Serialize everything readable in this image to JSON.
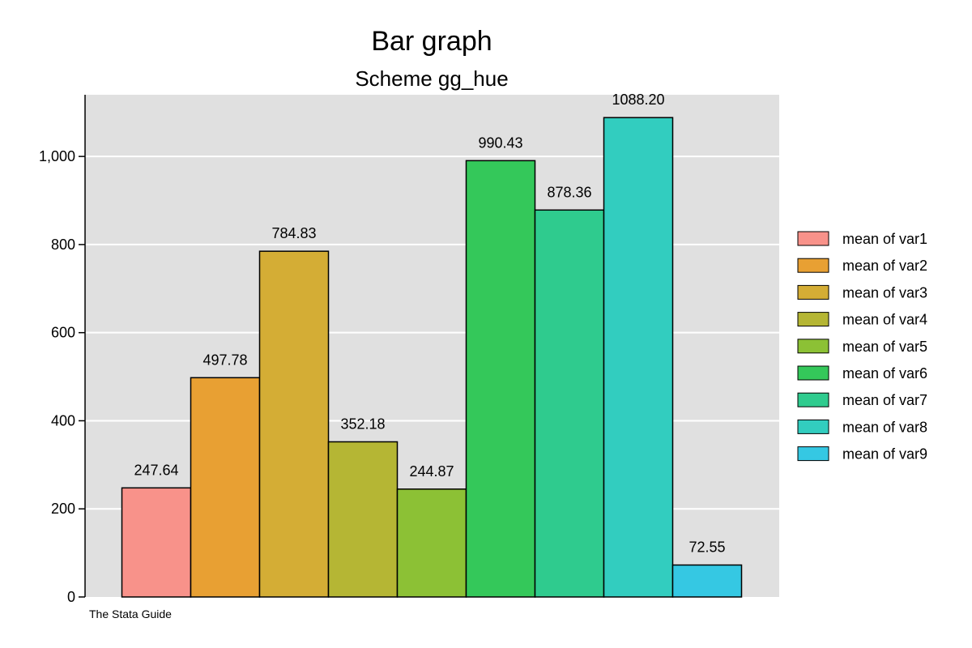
{
  "chart_data": {
    "type": "bar",
    "title": "Bar graph",
    "subtitle": "Scheme gg_hue",
    "note": "The Stata Guide",
    "xlabel": "",
    "ylabel": "",
    "ylim": [
      0,
      1140
    ],
    "yticks": [
      0,
      200,
      400,
      600,
      800,
      1000
    ],
    "ytick_labels": [
      "0",
      "200",
      "400",
      "600",
      "800",
      "1,000"
    ],
    "grid": true,
    "legend_position": "right",
    "series": [
      {
        "name": "mean of var1",
        "value": 247.64,
        "label": "247.64",
        "color": "#F8928A"
      },
      {
        "name": "mean of var2",
        "value": 497.78,
        "label": "497.78",
        "color": "#E8A033"
      },
      {
        "name": "mean of var3",
        "value": 784.83,
        "label": "784.83",
        "color": "#D4AD35"
      },
      {
        "name": "mean of var4",
        "value": 352.18,
        "label": "352.18",
        "color": "#B5B634"
      },
      {
        "name": "mean of var5",
        "value": 244.87,
        "label": "244.87",
        "color": "#8CC135"
      },
      {
        "name": "mean of var6",
        "value": 990.43,
        "label": "990.43",
        "color": "#34C85A"
      },
      {
        "name": "mean of var7",
        "value": 878.36,
        "label": "878.36",
        "color": "#2FCB8E"
      },
      {
        "name": "mean of var8",
        "value": 1088.2,
        "label": "1088.20",
        "color": "#32CDBF"
      },
      {
        "name": "mean of var9",
        "value": 72.55,
        "label": "72.55",
        "color": "#35C8E3"
      }
    ],
    "colors": {
      "panel_background": "#E0E0E0",
      "gridline": "#FFFFFF",
      "bar_outline": "#000000"
    }
  }
}
